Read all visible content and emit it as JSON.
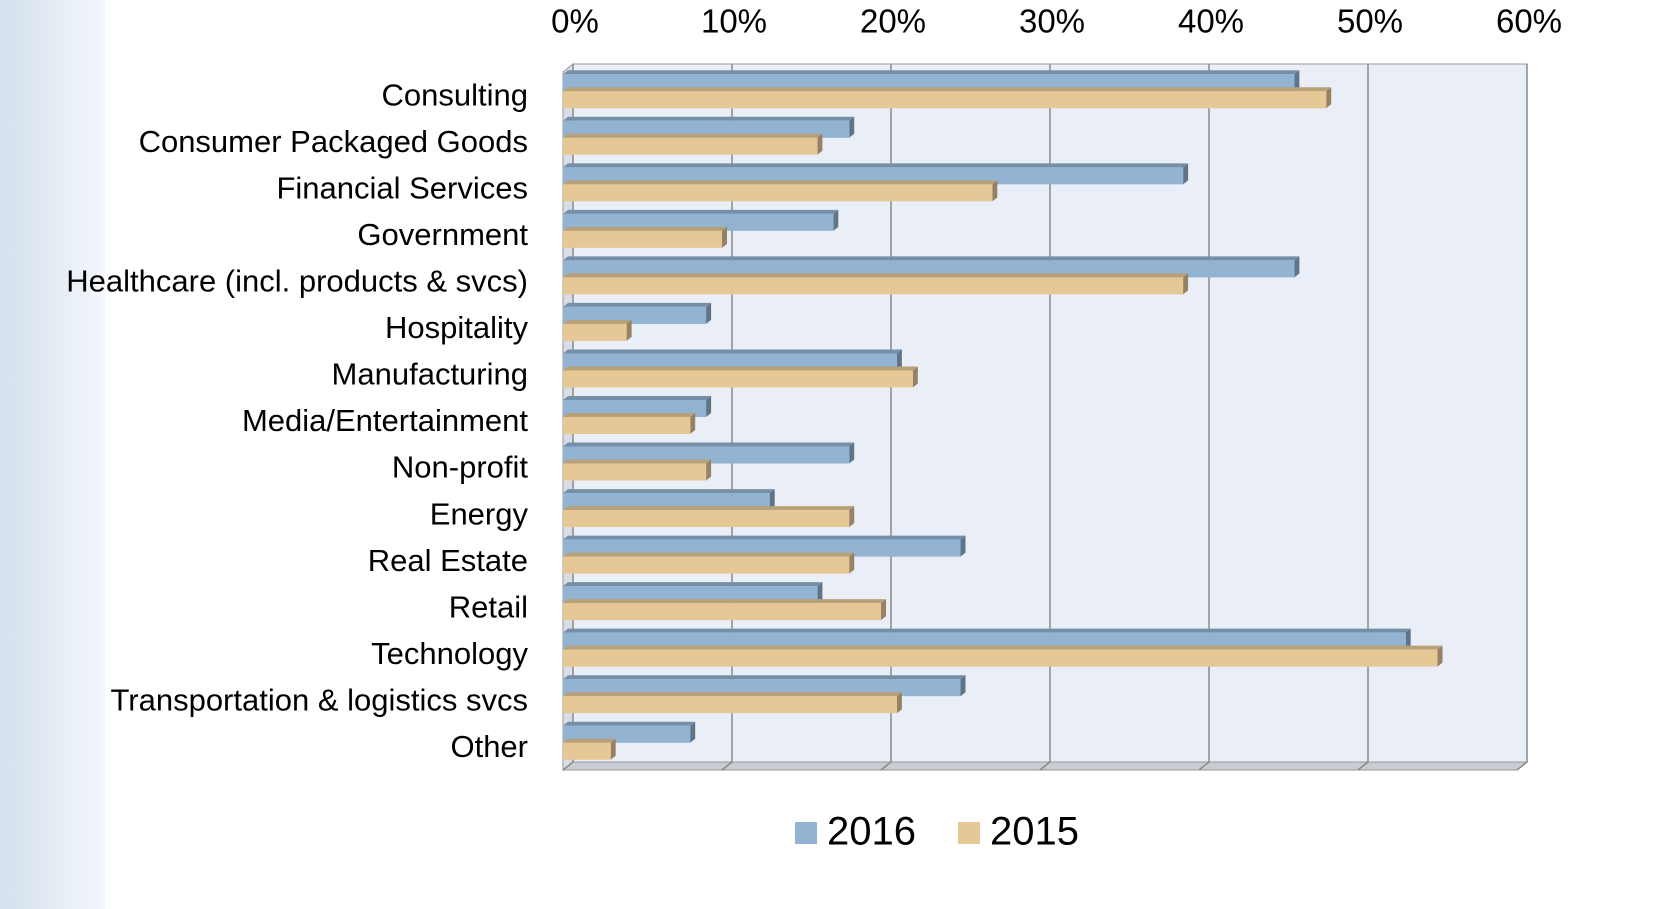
{
  "chart_data": {
    "type": "bar",
    "orientation": "horizontal",
    "categories": [
      "Consulting",
      "Consumer Packaged Goods",
      "Financial Services",
      "Government",
      "Healthcare (incl. products & svcs)",
      "Hospitality",
      "Manufacturing",
      "Media/Entertainment",
      "Non-profit",
      "Energy",
      "Real Estate",
      "Retail",
      "Technology",
      "Transportation & logistics svcs",
      "Other"
    ],
    "series": [
      {
        "name": "2016",
        "color": "#93b3d3",
        "values": [
          46,
          18,
          39,
          17,
          46,
          9,
          21,
          9,
          18,
          13,
          25,
          16,
          53,
          25,
          8
        ]
      },
      {
        "name": "2015",
        "color": "#e6c896",
        "values": [
          48,
          16,
          27,
          10,
          39,
          4,
          22,
          8,
          9,
          18,
          18,
          20,
          55,
          21,
          3
        ]
      }
    ],
    "xlim": [
      0,
      60
    ],
    "xticks": [
      {
        "value": 0,
        "label": "0%"
      },
      {
        "value": 10,
        "label": "10%"
      },
      {
        "value": 20,
        "label": "20%"
      },
      {
        "value": 30,
        "label": "30%"
      },
      {
        "value": 40,
        "label": "40%"
      },
      {
        "value": 50,
        "label": "50%"
      },
      {
        "value": 60,
        "label": "60%"
      }
    ],
    "grid": true,
    "legend": "bottom"
  }
}
